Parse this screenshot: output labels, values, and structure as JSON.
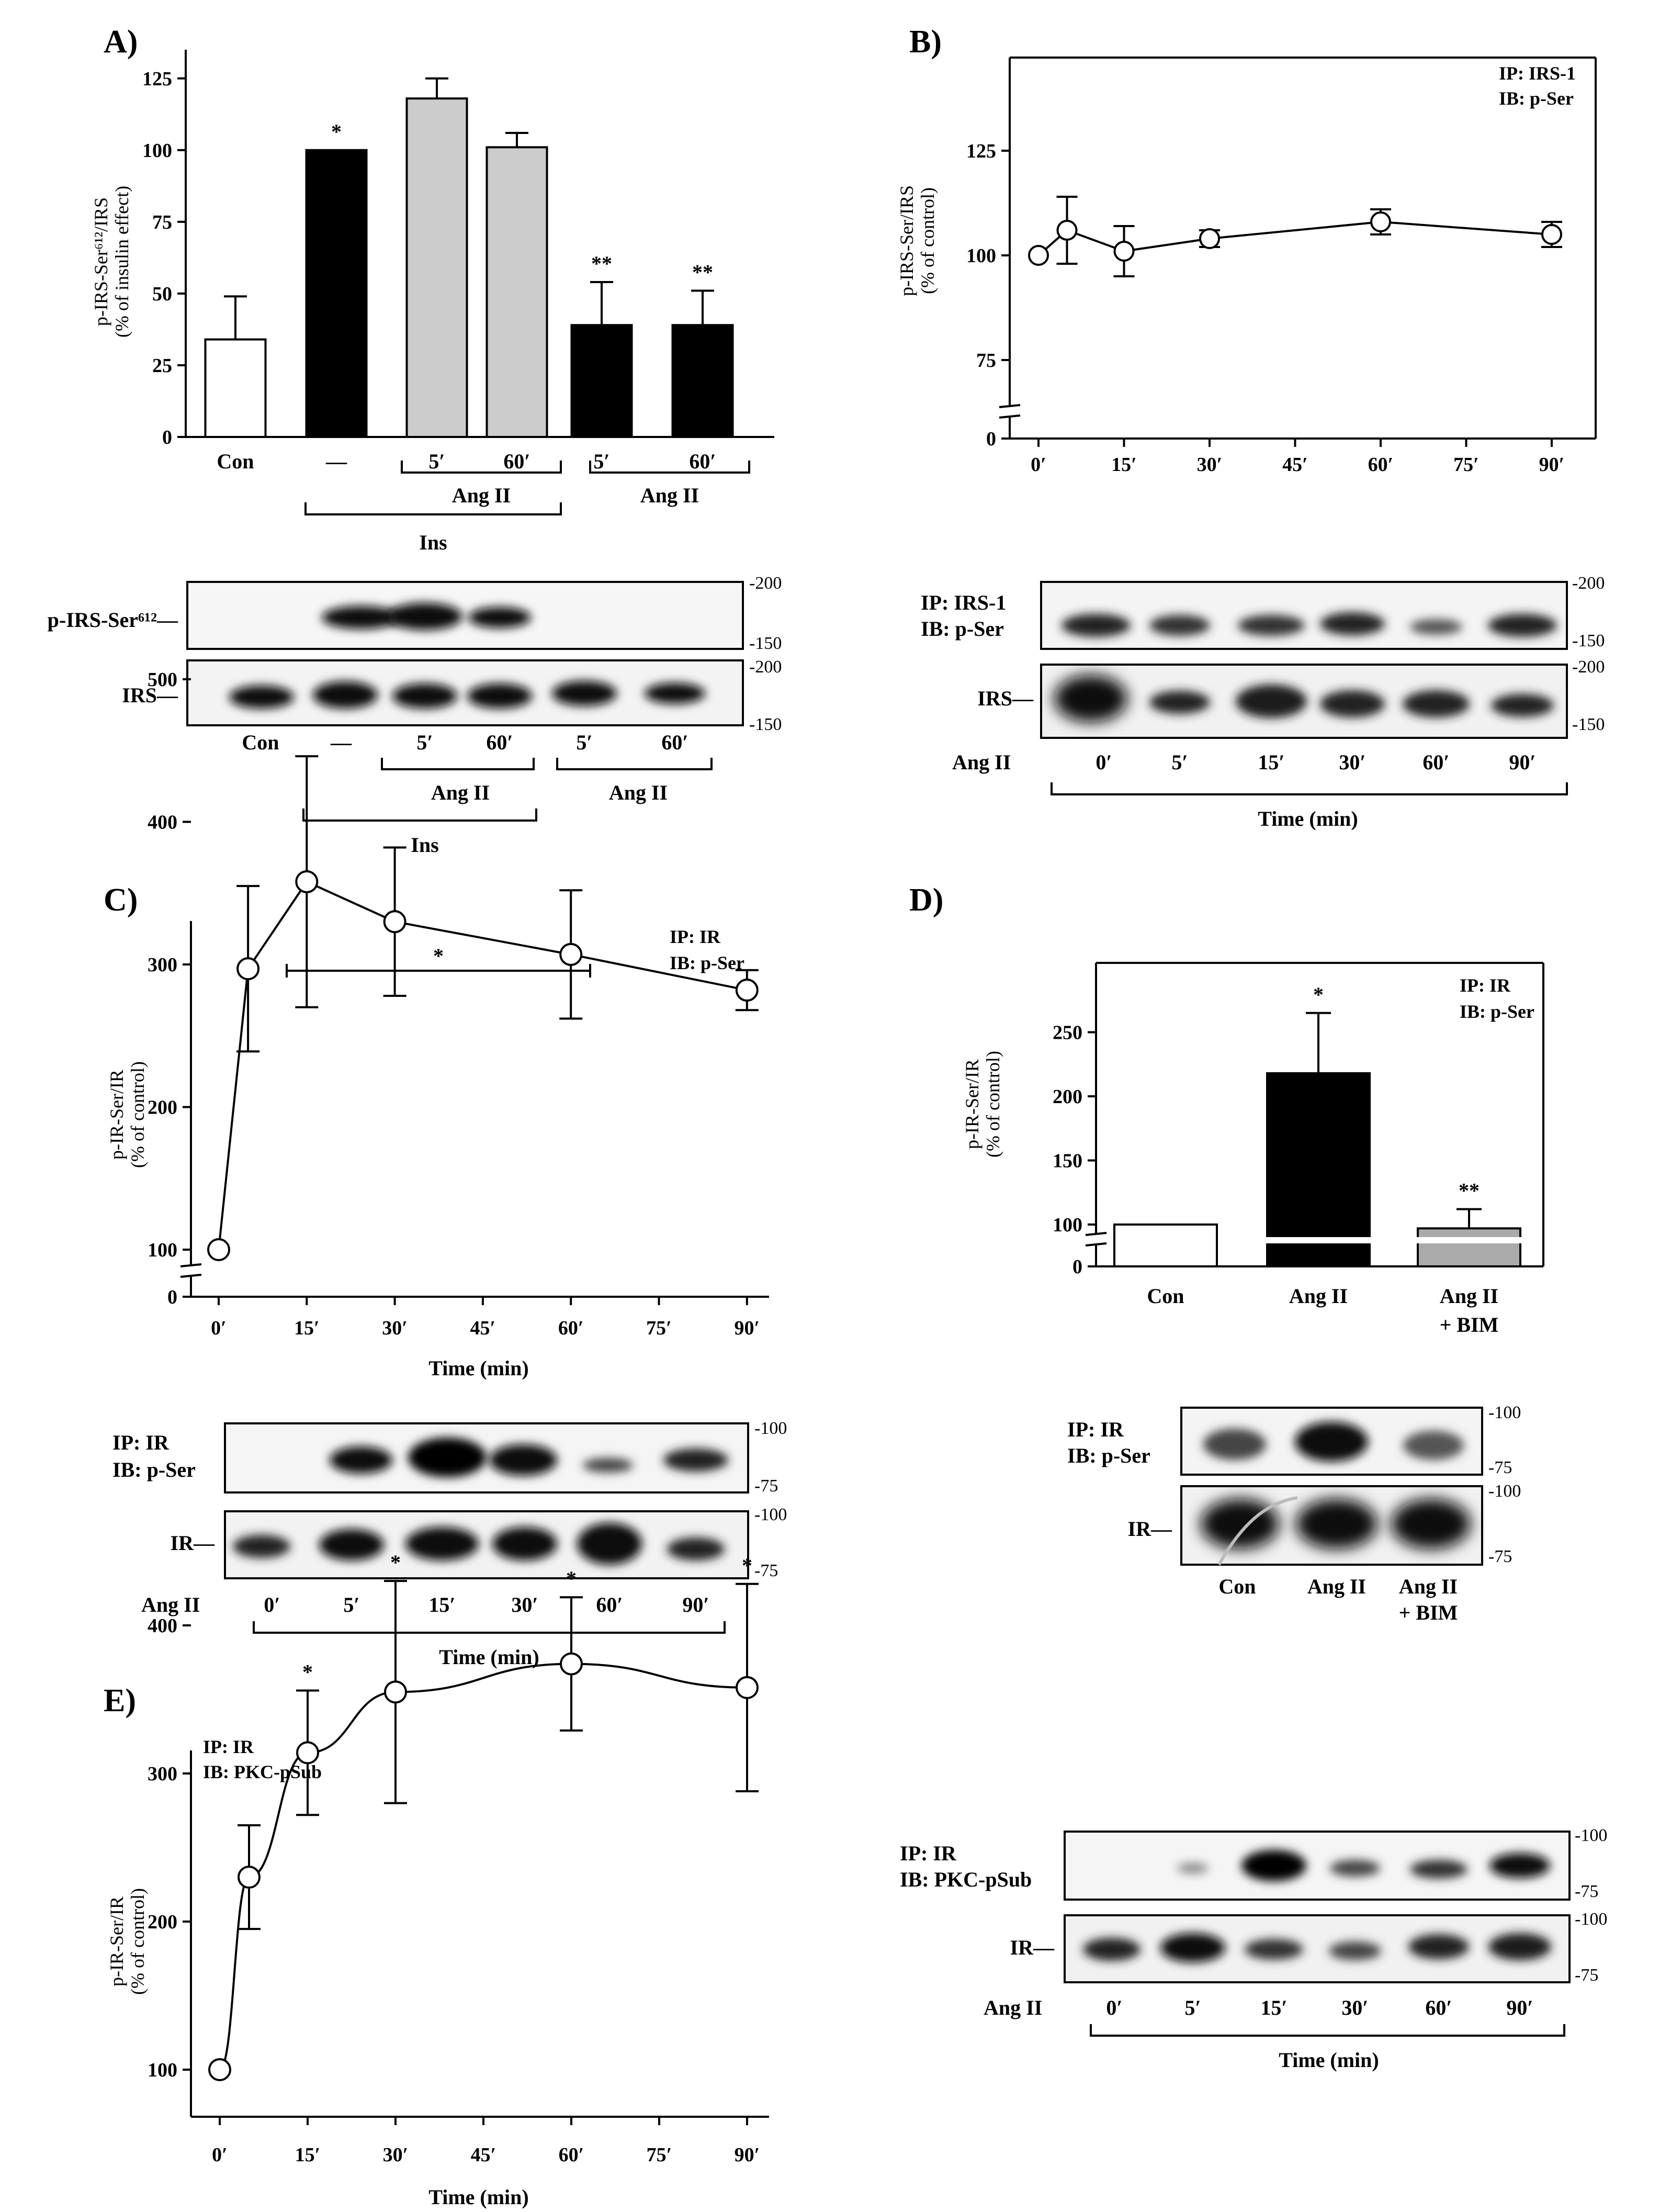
{
  "panels": {
    "A": {
      "label": "A)",
      "ylabel_line1": "p-IRS-Ser⁶¹²/IRS",
      "ylabel_line2": "(% of insulin effect)",
      "bar_labels": [
        "Con",
        "—",
        "5′",
        "60′",
        "5′",
        "60′"
      ],
      "group_angii_ins": "Ang II",
      "group_angii": "Ang II",
      "group_ins": "Ins",
      "blot_row1_label": "p-IRS-Ser⁶¹²—",
      "blot_row2_label": "IRS—",
      "blot_lane_labels": [
        "Con",
        "—",
        "5′",
        "60′",
        "5′",
        "60′"
      ],
      "blot_group_angii_ins": "Ang II",
      "blot_group_angii": "Ang II",
      "blot_group_ins": "Ins",
      "mw_row1": [
        "-200",
        "-150"
      ],
      "mw_row2": [
        "-200",
        "-150"
      ]
    },
    "B": {
      "label": "B)",
      "ylabel_line1": "p-IRS-Ser/IRS",
      "ylabel_line2": "(% of control)",
      "legend_ip": "IP: IRS-1",
      "legend_ib": "IB: p-Ser",
      "blot_ip": "IP: IRS-1",
      "blot_ib": "IB: p-Ser",
      "blot_row2_label": "IRS—",
      "blot_treatment": "Ang II",
      "blot_lane_labels": [
        "0′",
        "5′",
        "15′",
        "30′",
        "60′",
        "90′"
      ],
      "blot_xlabel": "Time (min)",
      "mw_row1": [
        "-200",
        "-150"
      ],
      "mw_row2": [
        "-200",
        "-150"
      ]
    },
    "C": {
      "label": "C)",
      "ylabel_line1": "p-IR-Ser/IR",
      "ylabel_line2": "(% of control)",
      "xlabel": "Time (min)",
      "legend_ip": "IP: IR",
      "legend_ib": "IB: p-Ser",
      "bracket_star": "*",
      "blot_ip": "IP: IR",
      "blot_ib": "IB: p-Ser",
      "blot_row2_label": "IR—",
      "blot_treatment": "Ang II",
      "blot_lane_labels": [
        "0′",
        "5′",
        "15′",
        "30′",
        "60′",
        "90′"
      ],
      "blot_xlabel": "Time (min)",
      "mw_row1": [
        "-100",
        "-75"
      ],
      "mw_row2": [
        "-100",
        "-75"
      ]
    },
    "D": {
      "label": "D)",
      "ylabel_line1": "p-IR-Ser/IR",
      "ylabel_line2": "(% of control)",
      "legend_ip": "IP: IR",
      "legend_ib": "IB: p-Ser",
      "bar_labels_line1": [
        "Con",
        "Ang II",
        "Ang II"
      ],
      "bar_labels_line2": [
        "",
        "",
        "+ BIM"
      ],
      "blot_ip": "IP: IR",
      "blot_ib": "IB: p-Ser",
      "blot_row2_label": "IR—",
      "blot_lane_labels_line1": [
        "Con",
        "Ang II",
        "Ang II"
      ],
      "blot_lane_labels_line2": [
        "",
        "",
        "+ BIM"
      ],
      "mw_row1": [
        "-100",
        "-75"
      ],
      "mw_row2": [
        "-100",
        "-75"
      ]
    },
    "E": {
      "label": "E)",
      "ylabel_line1": "p-IR-Ser/IR",
      "ylabel_line2": "(% of control)",
      "xlabel": "Time (min)",
      "legend_ip": "IP: IR",
      "legend_ib": "IB: PKC-pSub",
      "blot_ip": "IP: IR",
      "blot_ib": "IB: PKC-pSub",
      "blot_row2_label": "IR—",
      "blot_treatment": "Ang II",
      "blot_lane_labels": [
        "0′",
        "5′",
        "15′",
        "30′",
        "60′",
        "90′"
      ],
      "blot_xlabel": "Time (min)",
      "mw_row1": [
        "-100",
        "-75"
      ],
      "mw_row2": [
        "-100",
        "-75"
      ]
    }
  },
  "chart_data": [
    {
      "panel": "A",
      "type": "bar",
      "categories": [
        "Con",
        "—",
        "5′",
        "60′",
        "5′",
        "60′"
      ],
      "values": [
        34,
        100,
        118,
        101,
        39,
        39
      ],
      "errors": [
        15,
        0,
        7,
        5,
        15,
        12
      ],
      "fills": [
        "#ffffff",
        "#000000",
        "#cccccc",
        "#cccccc",
        "#000000",
        "#000000"
      ],
      "annotations": [
        "",
        "*",
        "",
        "",
        "**",
        "**"
      ],
      "ylim": [
        0,
        135
      ],
      "yticks": [
        0,
        25,
        50,
        75,
        100,
        125
      ],
      "ytick_labels": [
        "0",
        "25",
        "50",
        "75",
        "100",
        "125"
      ]
    },
    {
      "panel": "B",
      "type": "line",
      "x": [
        0,
        5,
        15,
        30,
        60,
        90
      ],
      "y": [
        100,
        106,
        101,
        104,
        108,
        105
      ],
      "errors": [
        0,
        8,
        6,
        2,
        3,
        3
      ],
      "annotations": [
        "",
        "",
        "",
        "",
        "",
        ""
      ],
      "axis_break": true,
      "ylim": [
        0,
        140
      ],
      "yticks": [
        0,
        75,
        100,
        125
      ],
      "ytick_labels": [
        "0",
        "75",
        "100",
        "125"
      ],
      "xticks": [
        0,
        15,
        30,
        45,
        60,
        75,
        90
      ],
      "xtick_labels": [
        "0′",
        "15′",
        "30′",
        "45′",
        "60′",
        "75′",
        "90′"
      ]
    },
    {
      "panel": "C",
      "type": "line",
      "x": [
        0,
        5,
        15,
        30,
        60,
        90
      ],
      "y": [
        100,
        297,
        358,
        330,
        307,
        282
      ],
      "errors": [
        0,
        58,
        88,
        52,
        45,
        14
      ],
      "annotations": [
        "",
        "",
        "",
        "",
        "",
        ""
      ],
      "axis_break": true,
      "xlabel": "Time (min)",
      "ylim": [
        0,
        550
      ],
      "yticks": [
        0,
        100,
        200,
        300,
        400,
        500
      ],
      "ytick_labels": [
        "0",
        "100",
        "200",
        "300",
        "400",
        "500"
      ],
      "xticks": [
        0,
        15,
        30,
        45,
        60,
        75,
        90
      ],
      "xtick_labels": [
        "0′",
        "15′",
        "30′",
        "45′",
        "60′",
        "75′",
        "90′"
      ]
    },
    {
      "panel": "D",
      "type": "bar",
      "categories": [
        "Con",
        "Ang II",
        "Ang II + BIM"
      ],
      "values": [
        100,
        218,
        97
      ],
      "errors": [
        0,
        47,
        15
      ],
      "fills": [
        "#ffffff",
        "#000000",
        "#aaaaaa"
      ],
      "annotations": [
        "",
        "*",
        "**"
      ],
      "axis_break": true,
      "ylim": [
        0,
        290
      ],
      "yticks": [
        0,
        100,
        150,
        200,
        250
      ],
      "ytick_labels": [
        "0",
        "100",
        "150",
        "200",
        "250"
      ]
    },
    {
      "panel": "E",
      "type": "line",
      "x": [
        0,
        5,
        15,
        30,
        60,
        90
      ],
      "y": [
        100,
        230,
        314,
        355,
        374,
        358
      ],
      "errors": [
        0,
        35,
        42,
        75,
        45,
        70
      ],
      "annotations": [
        "",
        "",
        "*",
        "*",
        "*",
        "*"
      ],
      "xlabel": "Time (min)",
      "ylim": [
        0,
        500
      ],
      "yticks": [
        100,
        200,
        300,
        400
      ],
      "ytick_labels": [
        "100",
        "200",
        "300",
        "400"
      ],
      "xticks": [
        0,
        15,
        30,
        45,
        60,
        75,
        90
      ],
      "xtick_labels": [
        "0′",
        "15′",
        "30′",
        "45′",
        "60′",
        "75′",
        "90′"
      ]
    }
  ]
}
